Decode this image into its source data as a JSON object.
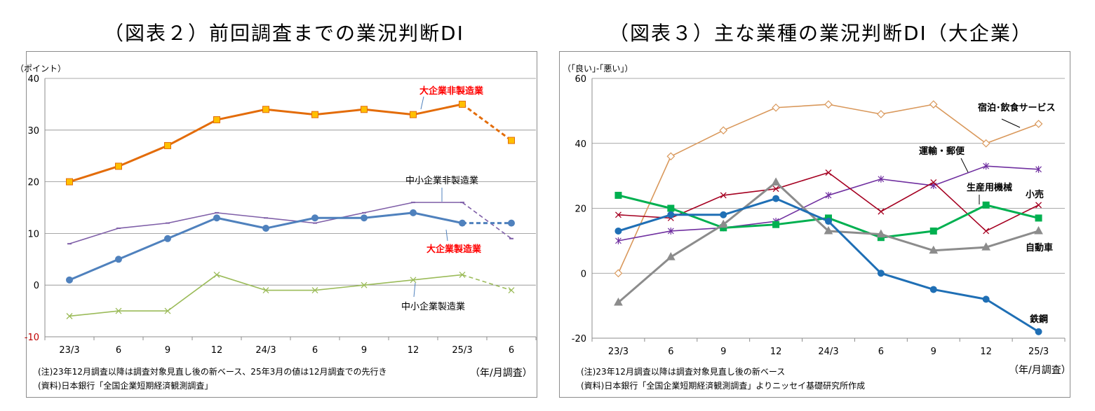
{
  "chart_data": [
    {
      "type": "line",
      "title": "（図表２）前回調査までの業況判断DI",
      "ylabel": "（ポイント）",
      "xlabel": "（年/月調査）",
      "ylim": [
        -10,
        40
      ],
      "yticks": [
        -10,
        0,
        10,
        20,
        30,
        40
      ],
      "categories": [
        "23/3",
        "6",
        "9",
        "12",
        "24/3",
        "6",
        "9",
        "12",
        "25/3",
        "6"
      ],
      "grid": true,
      "note": "(注)23年12月調査以降は調査対象見直し後の新ベース、25年3月の値は12月調査での先行き",
      "source": "(資料)日本銀行「全国企業短期経済観測調査」",
      "series": [
        {
          "name": "大企業非製造業",
          "values": [
            20,
            23,
            27,
            32,
            34,
            33,
            34,
            33,
            35,
            28
          ],
          "color": "#e36c09",
          "marker": "square",
          "forecast_from": 8
        },
        {
          "name": "中小企業非製造業",
          "values": [
            8,
            11,
            12,
            14,
            13,
            12,
            14,
            16,
            16,
            9
          ],
          "color": "#7f5fa8",
          "marker": "dash",
          "forecast_from": 8
        },
        {
          "name": "大企業製造業",
          "values": [
            1,
            5,
            9,
            13,
            11,
            13,
            13,
            14,
            12,
            12
          ],
          "color": "#4f81bd",
          "marker": "circle",
          "forecast_from": 8
        },
        {
          "name": "中小企業製造業",
          "values": [
            -6,
            -5,
            -5,
            2,
            -1,
            -1,
            0,
            1,
            2,
            -1
          ],
          "color": "#9bbb59",
          "marker": "x",
          "forecast_from": 8
        }
      ]
    },
    {
      "type": "line",
      "title": "（図表３）主な業種の業況判断DI（大企業）",
      "ylabel": "（｢良い｣-｢悪い｣）",
      "xlabel": "（年/月調査）",
      "ylim": [
        -20,
        60
      ],
      "yticks": [
        -20,
        0,
        20,
        40,
        60
      ],
      "categories": [
        "23/3",
        "6",
        "9",
        "12",
        "24/3",
        "6",
        "9",
        "12",
        "25/3"
      ],
      "grid": true,
      "note": "(注)23年12月調査以降は調査対象見直し後の新ベース",
      "source": "(資料)日本銀行「全国企業短期経済観測調査」よりニッセイ基礎研究所作成",
      "series": [
        {
          "name": "宿泊･飲食サービス",
          "values": [
            0,
            36,
            44,
            51,
            52,
            49,
            52,
            40,
            46
          ],
          "color": "#d9985b",
          "marker": "diamond-open"
        },
        {
          "name": "運輸・郵便",
          "values": [
            10,
            13,
            14,
            16,
            24,
            29,
            27,
            33,
            32
          ],
          "color": "#7030a0",
          "marker": "asterisk"
        },
        {
          "name": "小売",
          "values": [
            18,
            17,
            24,
            26,
            31,
            19,
            28,
            13,
            21
          ],
          "color": "#a50021",
          "marker": "x"
        },
        {
          "name": "生産用機械",
          "values": [
            24,
            20,
            14,
            15,
            17,
            11,
            13,
            21,
            17
          ],
          "color": "#00b050",
          "marker": "square"
        },
        {
          "name": "自動車",
          "values": [
            -9,
            5,
            15,
            28,
            13,
            12,
            7,
            8,
            13
          ],
          "color": "#8c8c8c",
          "marker": "triangle"
        },
        {
          "name": "鉄鋼",
          "values": [
            13,
            18,
            18,
            23,
            16,
            0,
            -5,
            -8,
            -18
          ],
          "color": "#1f6fb5",
          "marker": "circle"
        }
      ]
    }
  ]
}
